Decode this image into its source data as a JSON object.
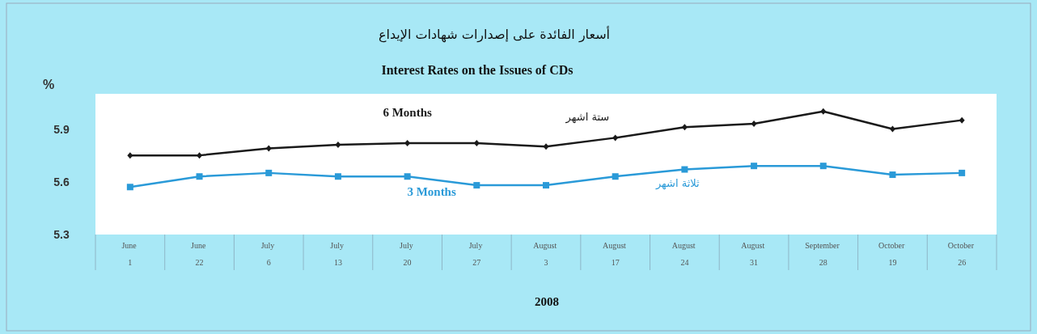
{
  "chart_data": {
    "type": "line",
    "title": "أسعار الفائدة على إصدارات شهادات الإيداع",
    "subtitle": "Interest Rates on the Issues of CDs",
    "ylabel": "%",
    "xlabel": "2008",
    "categories": [
      "June 1",
      "June 22",
      "July 6",
      "July 13",
      "July 20",
      "July 27",
      "August 3",
      "August 17",
      "August 24",
      "August 31",
      "September 28",
      "October 19",
      "October 26"
    ],
    "series": [
      {
        "name": "6 Months",
        "color": "#1a1a1a",
        "marker": "diamond",
        "values": [
          5.75,
          5.75,
          5.79,
          5.81,
          5.82,
          5.82,
          5.8,
          5.85,
          5.91,
          5.93,
          6.0,
          5.9,
          5.95
        ]
      },
      {
        "name": "3 Months",
        "color": "#2a9ad8",
        "marker": "square",
        "values": [
          5.57,
          5.63,
          5.65,
          5.63,
          5.63,
          5.58,
          5.58,
          5.63,
          5.67,
          5.69,
          5.69,
          5.64,
          5.65
        ]
      }
    ],
    "annotations": [
      "ستة اشهر",
      "ثلاثة اشهر"
    ],
    "ylim": [
      5.3,
      6.1
    ],
    "yticks": [
      5.3,
      5.6,
      5.9
    ],
    "grid": false,
    "legend": false
  }
}
